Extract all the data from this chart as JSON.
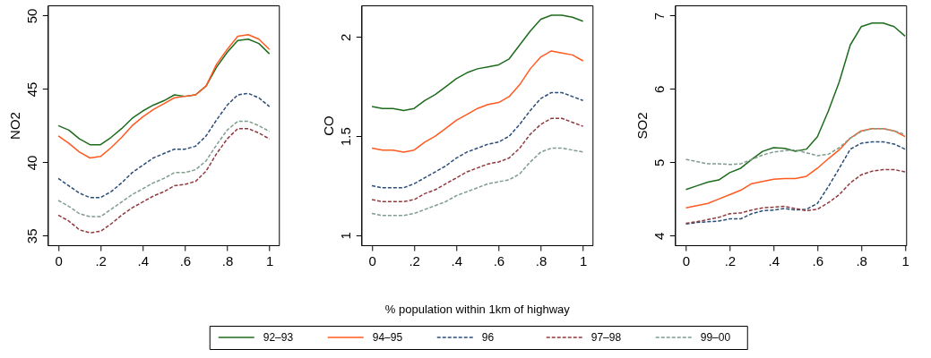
{
  "chart_data": [
    {
      "type": "line",
      "ylabel": "NO2",
      "legend": "bottom",
      "grid": false,
      "xlim": [
        -0.05,
        1.045
      ],
      "ylim": [
        34.35,
        50.7
      ],
      "xticks": [
        0,
        {
          "value": 0.2,
          "label": ".2"
        },
        {
          "value": 0.4,
          "label": ".4"
        },
        {
          "value": 0.6,
          "label": ".6"
        },
        {
          "value": 0.8,
          "label": ".8"
        },
        1
      ],
      "yticks": [
        35,
        40,
        45,
        50
      ],
      "x": [
        0,
        0.05,
        0.1,
        0.15,
        0.2,
        0.25,
        0.3,
        0.35,
        0.4,
        0.45,
        0.5,
        0.55,
        0.6,
        0.65,
        0.7,
        0.75,
        0.8,
        0.85,
        0.9,
        0.95,
        1
      ],
      "series": [
        {
          "name": "92–93",
          "color": "#1e6b1e",
          "line_style": "solid",
          "values": [
            42.5,
            42.2,
            41.6,
            41.2,
            41.2,
            41.7,
            42.3,
            43.0,
            43.5,
            43.9,
            44.2,
            44.6,
            44.5,
            44.6,
            45.2,
            46.5,
            47.5,
            48.3,
            48.4,
            48.1,
            47.4
          ]
        },
        {
          "name": "94–95",
          "color": "#ff5a1f",
          "line_style": "solid",
          "values": [
            41.8,
            41.3,
            40.7,
            40.3,
            40.4,
            41.0,
            41.7,
            42.5,
            43.1,
            43.6,
            44.0,
            44.4,
            44.5,
            44.6,
            45.2,
            46.7,
            47.7,
            48.6,
            48.7,
            48.4,
            47.7
          ]
        },
        {
          "name": "96",
          "color": "#2a4d78",
          "line_style": "dashed",
          "values": [
            38.9,
            38.4,
            37.9,
            37.6,
            37.6,
            38.0,
            38.6,
            39.3,
            39.8,
            40.3,
            40.6,
            40.9,
            40.9,
            41.1,
            41.8,
            42.9,
            43.9,
            44.6,
            44.7,
            44.4,
            43.8
          ]
        },
        {
          "name": "97–98",
          "color": "#8e3a3f",
          "line_style": "dashed",
          "values": [
            36.4,
            36.0,
            35.4,
            35.2,
            35.3,
            35.8,
            36.4,
            36.9,
            37.3,
            37.7,
            38.0,
            38.4,
            38.5,
            38.7,
            39.4,
            40.6,
            41.6,
            42.3,
            42.3,
            42.0,
            41.6
          ]
        },
        {
          "name": "99–00",
          "color": "#7f9c8c",
          "line_style": "dashed",
          "values": [
            37.4,
            37.0,
            36.5,
            36.3,
            36.3,
            36.8,
            37.3,
            37.8,
            38.2,
            38.6,
            38.9,
            39.3,
            39.3,
            39.5,
            40.1,
            41.2,
            42.2,
            42.8,
            42.8,
            42.5,
            42.1
          ]
        }
      ]
    },
    {
      "type": "line",
      "ylabel": "CO",
      "xlabel": "% population within 1km of highway",
      "grid": false,
      "xlim": [
        -0.05,
        1.045
      ],
      "ylim": [
        0.95,
        2.16
      ],
      "xticks": [
        0,
        {
          "value": 0.2,
          "label": ".2"
        },
        {
          "value": 0.4,
          "label": ".4"
        },
        {
          "value": 0.6,
          "label": ".6"
        },
        {
          "value": 0.8,
          "label": ".8"
        },
        1
      ],
      "yticks": [
        1,
        1.5,
        2
      ],
      "x": [
        0,
        0.05,
        0.1,
        0.15,
        0.2,
        0.25,
        0.3,
        0.35,
        0.4,
        0.45,
        0.5,
        0.55,
        0.6,
        0.65,
        0.7,
        0.75,
        0.8,
        0.85,
        0.9,
        0.95,
        1
      ],
      "series": [
        {
          "name": "92–93",
          "color": "#1e6b1e",
          "line_style": "solid",
          "values": [
            1.65,
            1.64,
            1.64,
            1.63,
            1.64,
            1.68,
            1.71,
            1.75,
            1.79,
            1.82,
            1.84,
            1.85,
            1.86,
            1.89,
            1.96,
            2.03,
            2.09,
            2.11,
            2.11,
            2.1,
            2.08
          ]
        },
        {
          "name": "94–95",
          "color": "#ff5a1f",
          "line_style": "solid",
          "values": [
            1.44,
            1.43,
            1.43,
            1.42,
            1.43,
            1.47,
            1.5,
            1.54,
            1.58,
            1.61,
            1.64,
            1.66,
            1.67,
            1.7,
            1.76,
            1.84,
            1.9,
            1.93,
            1.92,
            1.91,
            1.88
          ]
        },
        {
          "name": "96",
          "color": "#2a4d78",
          "line_style": "dashed",
          "values": [
            1.25,
            1.24,
            1.24,
            1.24,
            1.26,
            1.29,
            1.32,
            1.35,
            1.39,
            1.42,
            1.44,
            1.46,
            1.47,
            1.5,
            1.56,
            1.63,
            1.69,
            1.72,
            1.72,
            1.7,
            1.68
          ]
        },
        {
          "name": "97–98",
          "color": "#8e3a3f",
          "line_style": "dashed",
          "values": [
            1.18,
            1.17,
            1.17,
            1.17,
            1.18,
            1.21,
            1.23,
            1.26,
            1.29,
            1.32,
            1.34,
            1.36,
            1.37,
            1.39,
            1.44,
            1.51,
            1.56,
            1.59,
            1.59,
            1.57,
            1.55
          ]
        },
        {
          "name": "99–00",
          "color": "#7f9c8c",
          "line_style": "dashed",
          "values": [
            1.11,
            1.1,
            1.1,
            1.1,
            1.11,
            1.13,
            1.15,
            1.17,
            1.2,
            1.22,
            1.24,
            1.26,
            1.27,
            1.28,
            1.31,
            1.37,
            1.42,
            1.44,
            1.44,
            1.43,
            1.42
          ]
        }
      ]
    },
    {
      "type": "line",
      "ylabel": "SO2",
      "grid": false,
      "xlim": [
        -0.05,
        1.005
      ],
      "ylim": [
        3.87,
        7.14
      ],
      "xticks": [
        0,
        {
          "value": 0.2,
          "label": ".2"
        },
        {
          "value": 0.4,
          "label": ".4"
        },
        {
          "value": 0.6,
          "label": ".6"
        },
        {
          "value": 0.8,
          "label": ".8"
        },
        1
      ],
      "yticks": [
        4,
        5,
        6,
        7
      ],
      "x": [
        0,
        0.05,
        0.1,
        0.15,
        0.2,
        0.25,
        0.3,
        0.35,
        0.4,
        0.45,
        0.5,
        0.55,
        0.6,
        0.65,
        0.7,
        0.75,
        0.8,
        0.85,
        0.9,
        0.95,
        1
      ],
      "series": [
        {
          "name": "92–93",
          "color": "#1e6b1e",
          "line_style": "solid",
          "values": [
            4.63,
            4.68,
            4.73,
            4.76,
            4.86,
            4.92,
            5.04,
            5.15,
            5.2,
            5.19,
            5.15,
            5.18,
            5.35,
            5.7,
            6.1,
            6.6,
            6.85,
            6.9,
            6.9,
            6.85,
            6.72
          ]
        },
        {
          "name": "94–95",
          "color": "#ff5a1f",
          "line_style": "solid",
          "values": [
            4.38,
            4.41,
            4.44,
            4.5,
            4.56,
            4.62,
            4.71,
            4.74,
            4.77,
            4.78,
            4.78,
            4.81,
            4.92,
            5.05,
            5.17,
            5.33,
            5.43,
            5.46,
            5.46,
            5.43,
            5.35
          ]
        },
        {
          "name": "96",
          "color": "#2a4d78",
          "line_style": "dashed",
          "values": [
            4.16,
            4.18,
            4.19,
            4.2,
            4.23,
            4.23,
            4.3,
            4.34,
            4.35,
            4.37,
            4.35,
            4.36,
            4.44,
            4.67,
            4.92,
            5.18,
            5.26,
            5.28,
            5.28,
            5.25,
            5.18
          ]
        },
        {
          "name": "97–98",
          "color": "#8e3a3f",
          "line_style": "dashed",
          "values": [
            4.17,
            4.19,
            4.22,
            4.25,
            4.3,
            4.31,
            4.35,
            4.38,
            4.39,
            4.4,
            4.37,
            4.34,
            4.36,
            4.45,
            4.56,
            4.72,
            4.83,
            4.88,
            4.9,
            4.9,
            4.87
          ]
        },
        {
          "name": "99–00",
          "color": "#7f9c8c",
          "line_style": "dashed",
          "values": [
            5.04,
            5.01,
            4.98,
            4.98,
            4.97,
            4.98,
            5.04,
            5.1,
            5.14,
            5.16,
            5.17,
            5.13,
            5.09,
            5.11,
            5.2,
            5.33,
            5.42,
            5.46,
            5.46,
            5.43,
            5.38
          ]
        }
      ]
    }
  ]
}
